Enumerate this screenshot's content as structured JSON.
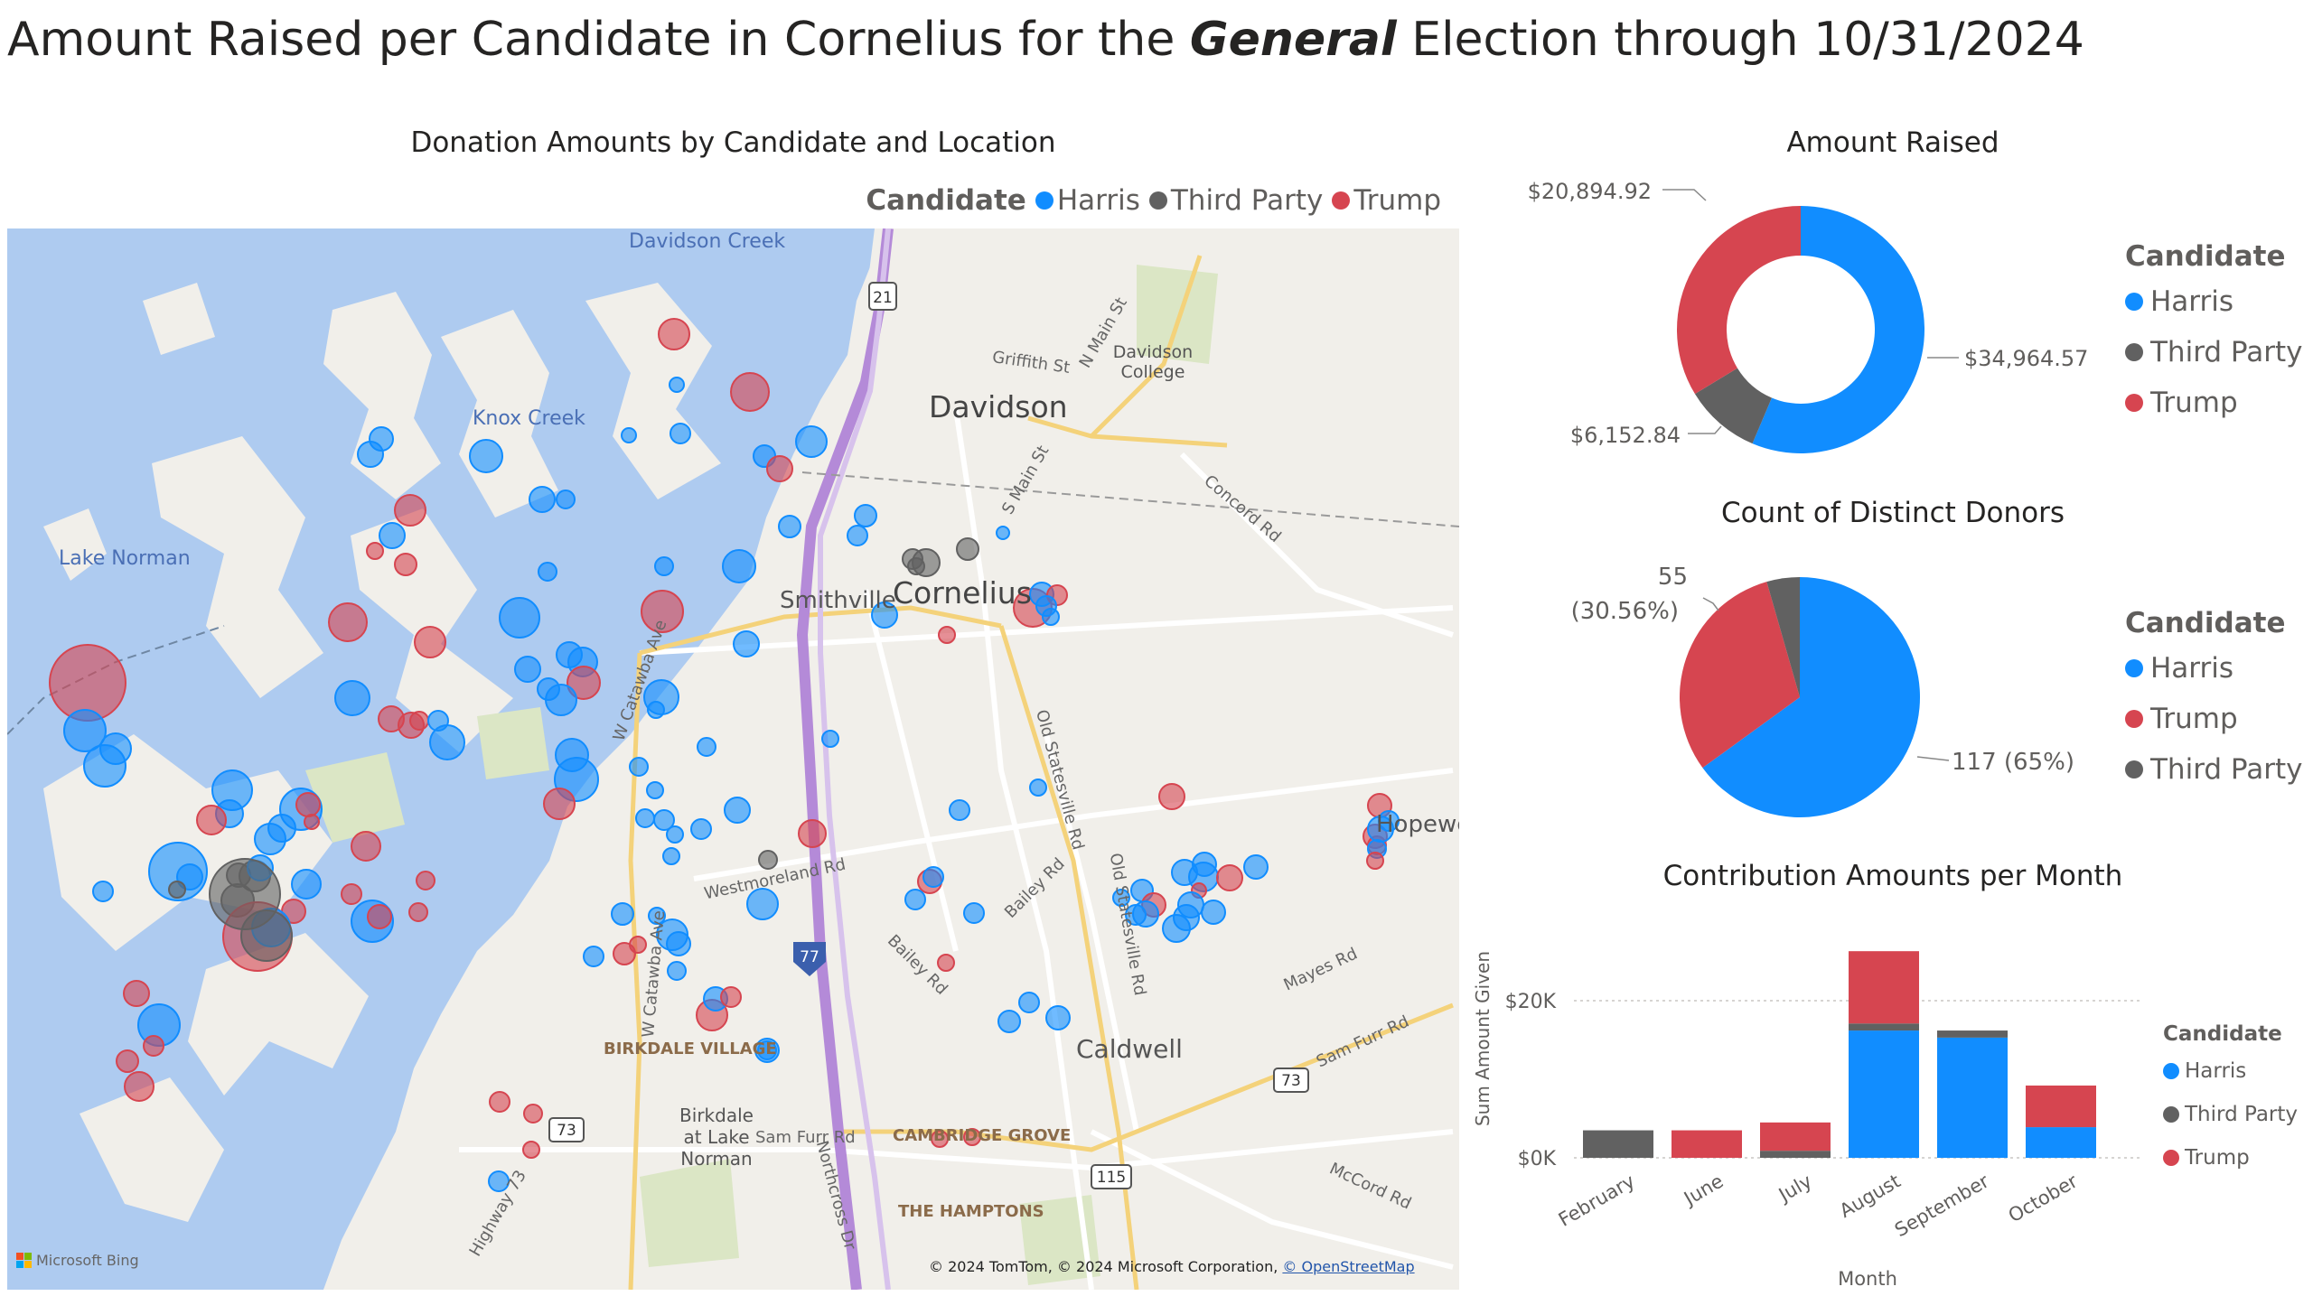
{
  "report": {
    "title_part1": "Amount Raised per Candidate in Cornelius for the ",
    "title_bold": "General",
    "title_part2": " Election through 10/31/2024"
  },
  "colors": {
    "harris": "#118DFF",
    "third_party": "#616161",
    "trump": "#D64550"
  },
  "map_visual": {
    "title": "Donation Amounts by Candidate and Location",
    "legend_title": "Candidate",
    "legend": [
      "Harris",
      "Third Party",
      "Trump"
    ],
    "place_labels": {
      "davidson_creek": "Davidson Creek",
      "knox_creek": "Knox Creek",
      "lake_norman": "Lake Norman",
      "davidson": "Davidson",
      "davidson_college": "Davidson College",
      "smithville": "Smithville",
      "cornelius": "Cornelius",
      "caldwell": "Caldwell",
      "birkdale_village": "BIRKDALE VILLAGE",
      "birkdale_lake_norman": "Birkdale at Lake Norman",
      "cambridge_grove": "CAMBRIDGE GROVE",
      "the_hamptons": "THE HAMPTONS",
      "hopewell": "Hopewell"
    },
    "road_labels": {
      "griffith_st": "Griffith St",
      "n_main_st": "N Main St",
      "s_main_st": "S Main St",
      "concord_rd": "Concord Rd",
      "w_catawba_ave": "W Catawba Ave",
      "westmoreland_rd": "Westmoreland Rd",
      "bailey_rd": "Bailey Rd",
      "old_statesville_rd": "Old Statesville Rd",
      "mayes_rd": "Mayes Rd",
      "sam_furr_rd": "Sam Furr Rd",
      "northcross_dr": "Northcross Dr",
      "highway_73": "Highway 73",
      "mccord_rd": "McCord Rd"
    },
    "shields": {
      "i77": "77",
      "us21": "21",
      "nc73": "73",
      "nc115": "115"
    },
    "attribution": "© 2024 TomTom, © 2024 Microsoft Corporation, ",
    "attribution_link": "© OpenStreetMap",
    "bing_logo": "Microsoft Bing"
  },
  "donut_visual": {
    "title": "Amount Raised",
    "legend_title": "Candidate",
    "legend": [
      "Harris",
      "Third Party",
      "Trump"
    ],
    "labels": {
      "harris": "$34,964.57",
      "third_party": "$6,152.84",
      "trump": "$20,894.92"
    }
  },
  "pie_visual": {
    "title": "Count of Distinct Donors",
    "legend_title": "Candidate",
    "legend": [
      "Harris",
      "Trump",
      "Third Party"
    ],
    "labels": {
      "harris": "117 (65%)",
      "trump_line1": "55",
      "trump_line2": "(30.56%)"
    }
  },
  "bar_visual": {
    "title": "Contribution Amounts per Month",
    "xlabel": "Month",
    "ylabel": "Sum Amount Given",
    "yticks": [
      "$0K",
      "$20K"
    ],
    "legend_title": "Candidate",
    "legend": [
      "Harris",
      "Third Party",
      "Trump"
    ]
  },
  "chart_data": [
    {
      "type": "pie",
      "variant": "donut",
      "title": "Amount Raised",
      "categories": [
        "Harris",
        "Third Party",
        "Trump"
      ],
      "values": [
        34964.57,
        6152.84,
        20894.92
      ]
    },
    {
      "type": "pie",
      "title": "Count of Distinct Donors",
      "categories": [
        "Harris",
        "Trump",
        "Third Party"
      ],
      "values": [
        117,
        55,
        8
      ]
    },
    {
      "type": "bar",
      "stacked": true,
      "title": "Contribution Amounts per Month",
      "xlabel": "Month",
      "ylabel": "Sum Amount Given",
      "categories": [
        "February",
        "June",
        "July",
        "August",
        "September",
        "October"
      ],
      "series": [
        {
          "name": "Harris",
          "values": [
            0,
            0,
            0,
            16200,
            15300,
            3900
          ]
        },
        {
          "name": "Third Party",
          "values": [
            3500,
            0,
            900,
            900,
            900,
            0
          ]
        },
        {
          "name": "Trump",
          "values": [
            0,
            3500,
            3600,
            9200,
            0,
            5300
          ]
        }
      ],
      "ylim": [
        0,
        26000
      ],
      "grid": true,
      "legend": "right"
    },
    {
      "type": "scatter",
      "variant": "bubble-map",
      "title": "Donation Amounts by Candidate and Location",
      "legend": "top-right",
      "series": [
        "Harris",
        "Third Party",
        "Trump"
      ]
    }
  ]
}
